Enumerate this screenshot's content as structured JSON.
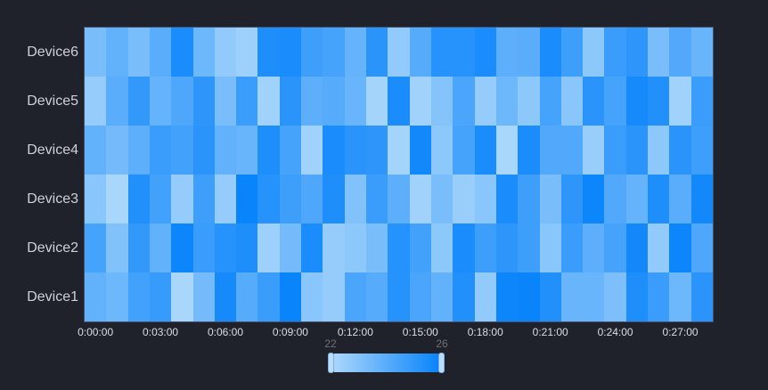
{
  "colors": {
    "background": "#20222b",
    "axis_tick_label": "#dcdee6",
    "device_label": "#ced1d9",
    "handle_label": "#6e7079",
    "heat_min_color": "#a9d6fb",
    "heat_max_color": "#0a84fb",
    "grid_border": "#47516b",
    "slider_handle": "#b9ddfd"
  },
  "chart_data": {
    "type": "heatmap",
    "title": "",
    "xlabel": "",
    "ylabel": "",
    "columns": 29,
    "x_interval_minutes": 1,
    "x_tick_labels": [
      "0:00:00",
      "0:03:00",
      "0:06:00",
      "0:09:00",
      "0:12:00",
      "0:15:00",
      "0:18:00",
      "0:21:00",
      "0:24:00",
      "0:27:00"
    ],
    "x_tick_minutes": [
      0,
      3,
      6,
      9,
      12,
      15,
      18,
      21,
      24,
      27
    ],
    "y_categories_top_to_bottom": [
      "Device6",
      "Device5",
      "Device4",
      "Device3",
      "Device2",
      "Device1"
    ],
    "value_range": [
      22,
      26
    ],
    "grid": "off",
    "visual_map_position": "bottom-center",
    "visual_map": {
      "min": 22,
      "max": 26,
      "min_label": "22",
      "max_label": "26",
      "orientation": "horizontal"
    },
    "series": [
      {
        "name": "Device6",
        "values": [
          23.2,
          23.8,
          23.2,
          24.0,
          25.6,
          23.5,
          22.6,
          22.3,
          25.5,
          25.6,
          24.7,
          24.5,
          23.7,
          25.2,
          22.6,
          24.1,
          25.3,
          25.3,
          25.6,
          23.9,
          24.0,
          25.6,
          24.7,
          22.7,
          24.8,
          25.1,
          23.2,
          24.2,
          23.6
        ]
      },
      {
        "name": "Device5",
        "values": [
          22.5,
          24.0,
          25.0,
          23.7,
          24.3,
          25.1,
          23.2,
          24.8,
          22.2,
          25.2,
          23.9,
          24.1,
          23.6,
          22.1,
          25.6,
          22.2,
          22.9,
          24.4,
          22.5,
          23.5,
          22.7,
          24.5,
          22.8,
          25.2,
          24.5,
          25.7,
          25.4,
          22.2,
          24.8
        ]
      },
      {
        "name": "Device4",
        "values": [
          23.8,
          23.3,
          23.9,
          24.8,
          24.6,
          25.2,
          23.8,
          23.6,
          25.5,
          24.5,
          22.2,
          25.6,
          25.2,
          25.1,
          22.1,
          25.8,
          22.7,
          24.5,
          25.6,
          22.0,
          25.6,
          24.2,
          24.2,
          22.4,
          24.8,
          25.2,
          22.7,
          25.2,
          24.7
        ]
      },
      {
        "name": "Device3",
        "values": [
          22.8,
          22.0,
          25.4,
          24.6,
          22.5,
          24.7,
          22.5,
          26.0,
          25.3,
          24.7,
          24.3,
          25.5,
          23.0,
          24.8,
          23.9,
          22.2,
          23.2,
          22.4,
          22.8,
          25.6,
          24.7,
          23.2,
          25.1,
          25.9,
          24.2,
          23.7,
          25.5,
          24.0,
          25.8
        ]
      },
      {
        "name": "Device2",
        "values": [
          24.5,
          23.0,
          25.0,
          23.8,
          25.9,
          24.8,
          25.3,
          25.5,
          22.3,
          23.3,
          25.6,
          22.5,
          22.7,
          23.2,
          25.3,
          24.6,
          22.7,
          25.6,
          24.7,
          25.1,
          24.7,
          22.8,
          24.8,
          23.9,
          24.5,
          25.8,
          22.6,
          25.9,
          24.3
        ]
      },
      {
        "name": "Device1",
        "values": [
          23.8,
          23.5,
          24.6,
          24.9,
          22.0,
          23.3,
          25.7,
          24.1,
          24.8,
          26.0,
          22.8,
          22.5,
          24.4,
          24.1,
          25.3,
          24.4,
          23.8,
          25.4,
          22.6,
          25.9,
          26.0,
          25.4,
          23.6,
          23.6,
          23.1,
          25.5,
          24.8,
          23.5,
          25.2
        ]
      }
    ]
  }
}
